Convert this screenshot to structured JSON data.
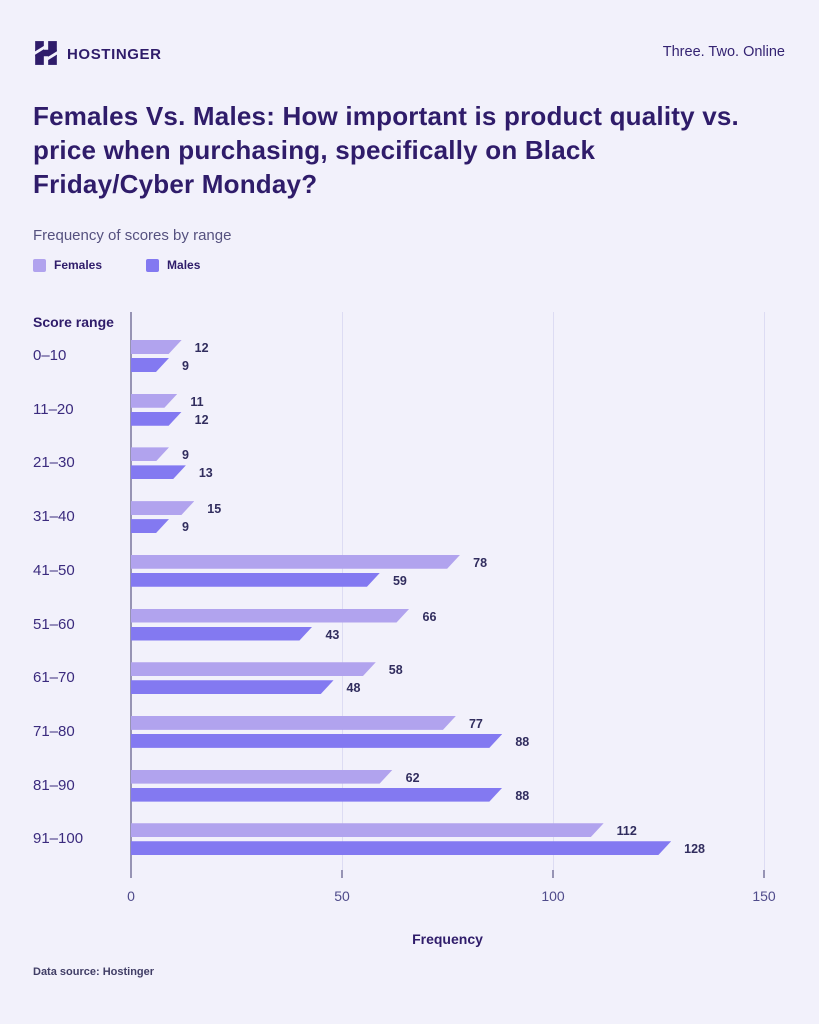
{
  "header": {
    "brand": "HOSTINGER",
    "tagline": "Three. Two. Online",
    "brand_color": "#2f1c6a"
  },
  "title": "Females Vs. Males: How important is product quality vs. price when purchasing, specifically on Black Friday/Cyber Monday?",
  "subtitle": "Frequency of scores by range",
  "chart_data": {
    "type": "bar",
    "orientation": "horizontal",
    "title": "Frequency of scores by range",
    "categories": [
      "0–10",
      "11–20",
      "21–30",
      "31–40",
      "41–50",
      "51–60",
      "61–70",
      "71–80",
      "81–90",
      "91–100"
    ],
    "series": [
      {
        "name": "Females",
        "color": "#b1a3ee",
        "values": [
          12,
          11,
          9,
          15,
          78,
          66,
          58,
          77,
          62,
          112
        ]
      },
      {
        "name": "Males",
        "color": "#8379f1",
        "values": [
          9,
          12,
          13,
          9,
          59,
          43,
          48,
          88,
          88,
          128
        ]
      }
    ],
    "xlabel": "Frequency",
    "ylabel": "Score range",
    "xticks": [
      0,
      50,
      100,
      150
    ],
    "xlim": [
      0,
      150
    ],
    "grid": true,
    "legend_position": "top-left",
    "value_labels": true
  },
  "footer": {
    "source": "Data source: Hostinger"
  }
}
